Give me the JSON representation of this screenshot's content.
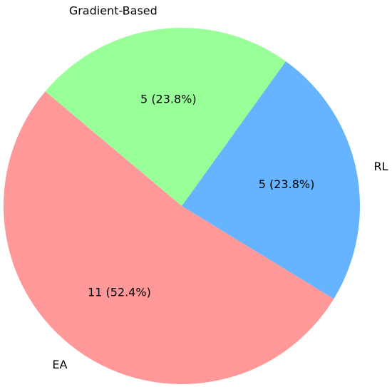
{
  "chart_data": {
    "type": "pie",
    "title": "",
    "labels": [
      "EA",
      "RL",
      "Gradient-Based"
    ],
    "values": [
      11,
      5,
      5
    ],
    "value_labels": [
      "11 (52.4%)",
      "5 (23.8%)",
      "5 (23.8%)"
    ],
    "colors": [
      "#ff9999",
      "#66b3ff",
      "#99ff99"
    ],
    "start_angle_deg": 140,
    "direction": "counterclockwise",
    "legend": "none"
  }
}
